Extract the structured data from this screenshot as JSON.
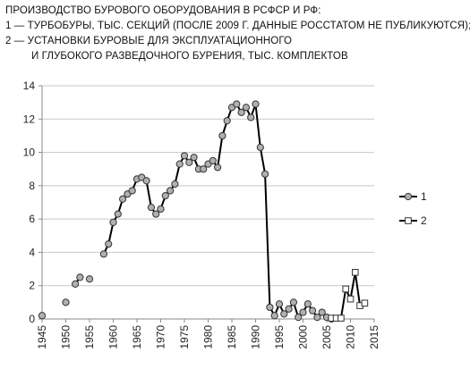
{
  "title": {
    "line1": "ПРОИЗВОДСТВО БУРОВОГО ОБОРУДОВАНИЯ В РСФСР И РФ:",
    "line2": "1 — ТУРБОБУРЫ, ТЫС. СЕКЦИЙ (ПОСЛЕ 2009 Г. ДАННЫЕ РОССТАТОМ НЕ ПУБЛИКУЮТСЯ);",
    "line3": "2 — УСТАНОВКИ БУРОВЫЕ ДЛЯ ЭКСПЛУАТАЦИОННОГО",
    "line4": "И ГЛУБОКОГО РАЗВЕДОЧНОГО БУРЕНИЯ, ТЫС. КОМПЛЕКТОВ"
  },
  "chart_data": {
    "type": "line",
    "xlim": [
      1945,
      2015
    ],
    "ylim": [
      0,
      14
    ],
    "x_ticks": [
      1945,
      1950,
      1955,
      1960,
      1965,
      1970,
      1975,
      1980,
      1985,
      1990,
      1995,
      2000,
      2005,
      2010,
      2015
    ],
    "y_ticks": [
      0,
      2,
      4,
      6,
      8,
      10,
      12,
      14
    ],
    "grid": "horizontal",
    "legend_position": "right",
    "series": [
      {
        "name": "1",
        "marker": "circle",
        "color": "#000000",
        "marker_fill": "#b0b0b0",
        "segments": [
          [
            [
              1945,
              0.2
            ]
          ],
          [
            [
              1950,
              1.0
            ]
          ],
          [
            [
              1952,
              2.1
            ],
            [
              1953,
              2.5
            ]
          ],
          [
            [
              1955,
              2.4
            ]
          ],
          [
            [
              1958,
              3.9
            ],
            [
              1959,
              4.5
            ],
            [
              1960,
              5.8
            ],
            [
              1961,
              6.3
            ],
            [
              1962,
              7.2
            ],
            [
              1963,
              7.5
            ],
            [
              1964,
              7.7
            ],
            [
              1965,
              8.4
            ],
            [
              1966,
              8.5
            ],
            [
              1967,
              8.3
            ],
            [
              1968,
              6.7
            ],
            [
              1969,
              6.3
            ],
            [
              1970,
              6.6
            ],
            [
              1971,
              7.4
            ],
            [
              1972,
              7.7
            ],
            [
              1973,
              8.1
            ],
            [
              1974,
              9.3
            ],
            [
              1975,
              9.8
            ],
            [
              1976,
              9.4
            ],
            [
              1977,
              9.7
            ],
            [
              1978,
              9.0
            ],
            [
              1979,
              9.0
            ],
            [
              1980,
              9.3
            ],
            [
              1981,
              9.5
            ],
            [
              1982,
              9.1
            ],
            [
              1983,
              11.0
            ],
            [
              1984,
              11.9
            ],
            [
              1985,
              12.7
            ],
            [
              1986,
              12.9
            ],
            [
              1987,
              12.4
            ],
            [
              1988,
              12.7
            ],
            [
              1989,
              12.1
            ],
            [
              1990,
              12.9
            ],
            [
              1991,
              10.3
            ],
            [
              1992,
              8.7
            ],
            [
              1993,
              0.7
            ],
            [
              1994,
              0.2
            ],
            [
              1995,
              0.9
            ],
            [
              1996,
              0.3
            ],
            [
              1997,
              0.6
            ],
            [
              1998,
              1.0
            ],
            [
              1999,
              0.1
            ],
            [
              2000,
              0.4
            ],
            [
              2001,
              0.9
            ],
            [
              2002,
              0.5
            ],
            [
              2003,
              0.1
            ],
            [
              2004,
              0.4
            ],
            [
              2005,
              0.1
            ],
            [
              2006,
              0.0
            ]
          ]
        ]
      },
      {
        "name": "2",
        "marker": "square",
        "color": "#000000",
        "marker_fill": "#ffffff",
        "segments": [
          [
            [
              2006,
              0.05
            ],
            [
              2007,
              0.05
            ],
            [
              2008,
              0.05
            ],
            [
              2009,
              1.8
            ],
            [
              2010,
              1.2
            ],
            [
              2011,
              2.8
            ],
            [
              2012,
              0.8
            ],
            [
              2013,
              0.95
            ]
          ]
        ]
      }
    ]
  }
}
